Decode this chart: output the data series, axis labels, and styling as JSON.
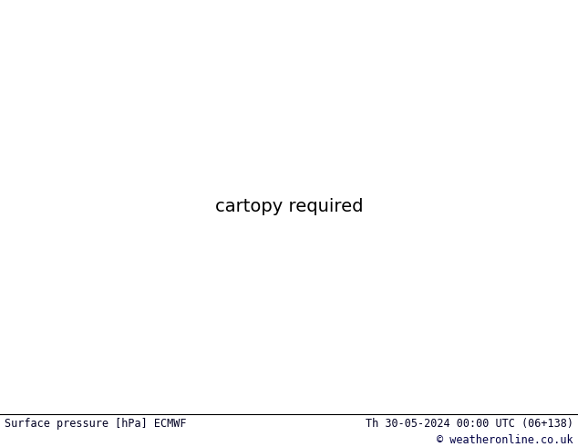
{
  "bottom_left_text": "Surface pressure [hPa] ECMWF",
  "bottom_right_text1": "Th 30-05-2024 00:00 UTC (06+138)",
  "bottom_right_text2": "© weatheronline.co.uk",
  "figsize": [
    6.34,
    4.9
  ],
  "dpi": 100,
  "ocean_color": "#d8e4ee",
  "land_color": "#c8e6b0",
  "mountain_color": "#b0b8a0",
  "bottom_bar_color": "#ffffff",
  "grid_color": "#c0c0c0",
  "extent": [
    -175,
    -50,
    15,
    80
  ]
}
